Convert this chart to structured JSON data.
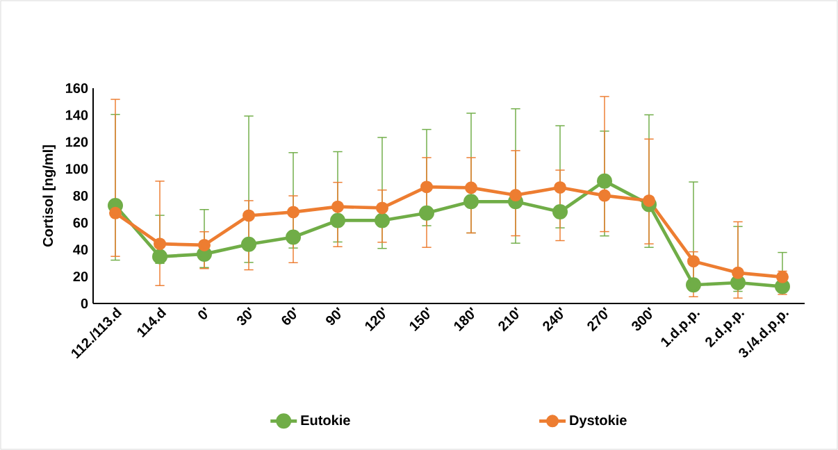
{
  "chart_data": {
    "type": "line",
    "ylabel": "Cortisol [ng/ml]",
    "categories": [
      "112./113.d",
      "114.d",
      "0'",
      "30'",
      "60'",
      "90'",
      "120'",
      "150'",
      "180'",
      "210'",
      "240'",
      "270'",
      "300'",
      "1.d.p.p.",
      "2.d.p.p.",
      "3./4.d.p.p."
    ],
    "series": [
      {
        "name": "Eutokie",
        "color": "#70ad47",
        "values": [
          72.8,
          34.8,
          36.7,
          44.0,
          49.3,
          61.7,
          61.7,
          67.2,
          75.7,
          75.7,
          68.1,
          91.0,
          73.6,
          13.8,
          15.5,
          12.6
        ],
        "errors": [
          [
            32.2,
            140.5
          ],
          [
            29.8,
            65.5
          ],
          [
            26.7,
            69.8
          ],
          [
            30.5,
            139.3
          ],
          [
            41.2,
            112.1
          ],
          [
            45.7,
            112.8
          ],
          [
            40.9,
            123.4
          ],
          [
            57.8,
            129.3
          ],
          [
            52.4,
            141.4
          ],
          [
            44.8,
            144.7
          ],
          [
            56.2,
            132.1
          ],
          [
            50.2,
            128.1
          ],
          [
            41.7,
            140.2
          ],
          [
            13.8,
            90.3
          ],
          [
            9.0,
            57.2
          ],
          [
            12.6,
            37.9
          ]
        ]
      },
      {
        "name": "Dystokie",
        "color": "#ed7d31",
        "values": [
          67.2,
          44.3,
          43.4,
          65.3,
          67.9,
          71.9,
          71.0,
          86.6,
          86.0,
          80.5,
          86.2,
          80.2,
          76.4,
          31.4,
          22.8,
          19.7
        ],
        "errors": [
          [
            35.0,
            151.7
          ],
          [
            13.3,
            90.9
          ],
          [
            25.9,
            53.3
          ],
          [
            25.0,
            76.4
          ],
          [
            30.3,
            80.0
          ],
          [
            42.2,
            90.0
          ],
          [
            45.5,
            84.3
          ],
          [
            41.7,
            108.4
          ],
          [
            52.4,
            108.4
          ],
          [
            50.3,
            113.6
          ],
          [
            46.7,
            99.1
          ],
          [
            53.4,
            153.8
          ],
          [
            44.3,
            122.2
          ],
          [
            5.0,
            38.4
          ],
          [
            4.0,
            60.7
          ],
          [
            6.7,
            24.0
          ]
        ]
      }
    ],
    "ylim": [
      0,
      160
    ],
    "yticks": [
      0,
      20,
      40,
      60,
      80,
      100,
      120,
      140,
      160
    ],
    "grid": false,
    "legend": "bottom",
    "marker": "circle",
    "line_style": "solid"
  }
}
